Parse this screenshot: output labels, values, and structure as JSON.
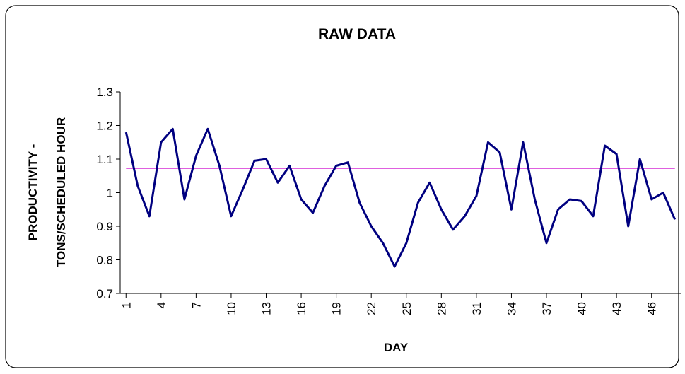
{
  "chart_data": {
    "type": "line",
    "title": "RAW DATA",
    "x_label": "DAY",
    "y_label": [
      "PRODUCTIVITY -",
      "TONS/SCHEDULED HOUR"
    ],
    "categories": [
      1,
      null,
      null,
      4,
      null,
      null,
      7,
      null,
      null,
      10,
      null,
      null,
      13,
      null,
      null,
      16,
      null,
      null,
      19,
      null,
      null,
      22,
      null,
      null,
      25,
      null,
      null,
      28,
      null,
      null,
      31,
      null,
      null,
      34,
      null,
      null,
      37,
      null,
      null,
      40,
      null,
      null,
      43,
      null,
      null,
      46,
      null,
      null
    ],
    "series": [
      {
        "color": "#000080",
        "values": [
          1.18,
          1.02,
          0.93,
          1.15,
          1.19,
          0.98,
          1.11,
          1.19,
          1.08,
          0.93,
          1.01,
          1.095,
          1.1,
          1.03,
          1.08,
          0.98,
          0.94,
          1.02,
          1.08,
          1.09,
          0.97,
          0.9,
          0.85,
          0.78,
          0.85,
          0.97,
          1.03,
          0.95,
          0.89,
          0.93,
          0.99,
          1.15,
          1.12,
          0.95,
          1.15,
          0.98,
          0.85,
          0.95,
          0.98,
          0.975,
          0.93,
          1.14,
          1.115,
          0.9,
          1.1,
          0.98,
          1.0,
          0.92
        ]
      }
    ],
    "reference_line": {
      "value": 1.073,
      "color": "#cc00cc"
    },
    "ylim": [
      0.7,
      1.3
    ],
    "yticks": [
      1.3,
      1.2,
      1.1,
      1,
      0.9,
      0.8,
      0.7
    ],
    "grid": false
  }
}
